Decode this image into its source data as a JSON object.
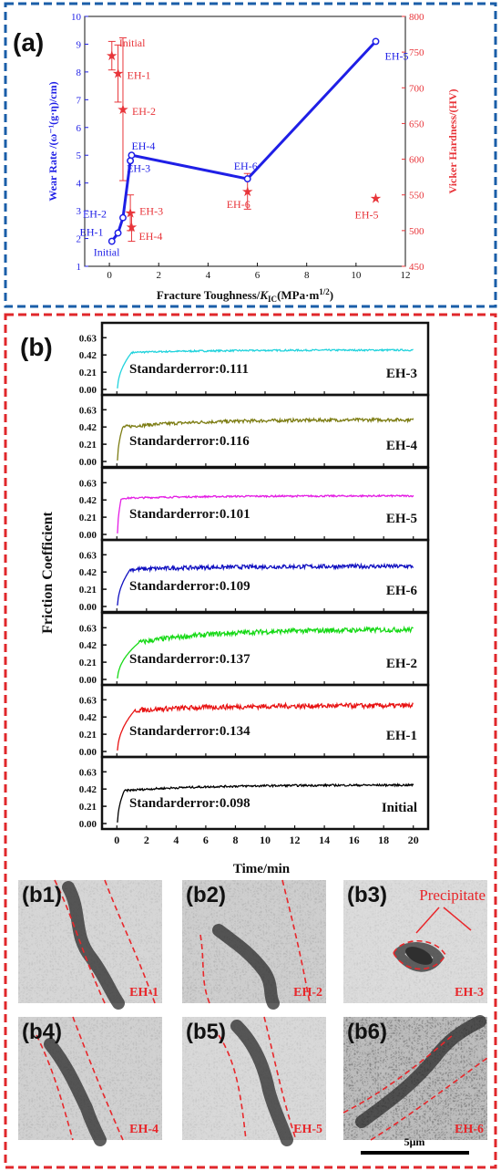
{
  "panel_a": {
    "label": "(a)",
    "xlabel_main": "Fracture Toughness/",
    "xlabel_k": "K",
    "xlabel_sub": "IC",
    "xlabel_units": "(MPa·m",
    "xlabel_exp": "1/2",
    "xlabel_close": ")",
    "ylabel_left": "Wear Rate /(ω⁻¹(g·η)/cm)",
    "ylabel_right": "Vicker Hardness/(HV)",
    "colors": {
      "wear": "#1f1fe6",
      "hardness": "#e8353a",
      "frame": "#1a5ea8"
    }
  },
  "panel_b": {
    "label": "(b)",
    "ylabel": "Friction Coefficient",
    "xlabel": "Time/min",
    "frame_color": "#e0272b"
  },
  "micrographs": {
    "scale_bar_label": "5μm",
    "precipitate_label": "Precipitate",
    "items": [
      {
        "tag": "(b1)",
        "sample": "EH-1"
      },
      {
        "tag": "(b2)",
        "sample": "EH-2"
      },
      {
        "tag": "(b3)",
        "sample": "EH-3"
      },
      {
        "tag": "(b4)",
        "sample": "EH-4"
      },
      {
        "tag": "(b5)",
        "sample": "EH-5"
      },
      {
        "tag": "(b6)",
        "sample": "EH-6"
      }
    ]
  },
  "chart_data": [
    {
      "type": "scatter",
      "x_ticks": [
        0,
        2,
        4,
        6,
        8,
        10,
        12
      ],
      "y_left_ticks": [
        1,
        2,
        3,
        4,
        5,
        6,
        7,
        8,
        9,
        10
      ],
      "y_right_ticks": [
        450,
        500,
        550,
        600,
        650,
        700,
        750,
        800
      ],
      "xlim": [
        -1,
        12
      ],
      "ylim_left": [
        1,
        10
      ],
      "ylim_right": [
        450,
        800
      ],
      "series": [
        {
          "axis": "left",
          "points": [
            {
              "label": "Initial",
              "x": 0.1,
              "y": 1.9
            },
            {
              "label": "EH-1",
              "x": 0.35,
              "y": 2.2
            },
            {
              "label": "EH-2",
              "x": 0.55,
              "y": 2.75
            },
            {
              "label": "EH-3",
              "x": 0.85,
              "y": 4.8
            },
            {
              "label": "EH-4",
              "x": 0.9,
              "y": 5.0
            },
            {
              "label": "EH-6",
              "x": 5.6,
              "y": 4.15
            },
            {
              "label": "EH-5",
              "x": 10.8,
              "y": 9.1
            }
          ]
        },
        {
          "axis": "right",
          "points": [
            {
              "label": "Initial",
              "x": 0.1,
              "y": 745,
              "err": 20
            },
            {
              "label": "EH-1",
              "x": 0.35,
              "y": 720,
              "err": 40
            },
            {
              "label": "EH-2",
              "x": 0.55,
              "y": 670,
              "err": 100
            },
            {
              "label": "EH-3",
              "x": 0.85,
              "y": 525,
              "err": 25
            },
            {
              "label": "EH-4",
              "x": 0.9,
              "y": 505,
              "err": 20
            },
            {
              "label": "EH-6",
              "x": 5.6,
              "y": 555,
              "err": 25
            },
            {
              "label": "EH-5",
              "x": 10.8,
              "y": 545,
              "err": 0
            }
          ]
        }
      ]
    },
    {
      "type": "line",
      "x_ticks": [
        0,
        2,
        4,
        6,
        8,
        10,
        12,
        14,
        16,
        18,
        20
      ],
      "y_ticks": [
        "0.00",
        "0.21",
        "0.42",
        "0.63"
      ],
      "xlim": [
        -1,
        21
      ],
      "ylim": [
        0,
        0.7
      ],
      "series": [
        {
          "name": "EH-3",
          "color": "#22d3dd",
          "plateau": 0.48,
          "peak": 0.45,
          "noise": 0.01,
          "rise": 1.0,
          "std": "Standarderror:0.111"
        },
        {
          "name": "EH-4",
          "color": "#7d7d14",
          "plateau": 0.51,
          "peak": 0.42,
          "noise": 0.02,
          "rise": 0.4,
          "std": "Standarderror:0.116"
        },
        {
          "name": "EH-5",
          "color": "#e41de4",
          "plateau": 0.47,
          "peak": 0.44,
          "noise": 0.01,
          "rise": 0.3,
          "std": "Standarderror:0.101"
        },
        {
          "name": "EH-6",
          "color": "#1010c0",
          "plateau": 0.49,
          "peak": 0.45,
          "noise": 0.025,
          "rise": 0.9,
          "std": "Standarderror:0.109"
        },
        {
          "name": "EH-2",
          "color": "#17d917",
          "plateau": 0.61,
          "peak": 0.45,
          "noise": 0.03,
          "rise": 1.5,
          "std": "Standarderror:0.137"
        },
        {
          "name": "EH-1",
          "color": "#e81414",
          "plateau": 0.56,
          "peak": 0.5,
          "noise": 0.03,
          "rise": 1.2,
          "std": "Standarderror:0.134"
        },
        {
          "name": "Initial",
          "color": "#000000",
          "plateau": 0.47,
          "peak": 0.4,
          "noise": 0.012,
          "rise": 0.5,
          "std": "Standarderror:0.098"
        }
      ]
    }
  ]
}
